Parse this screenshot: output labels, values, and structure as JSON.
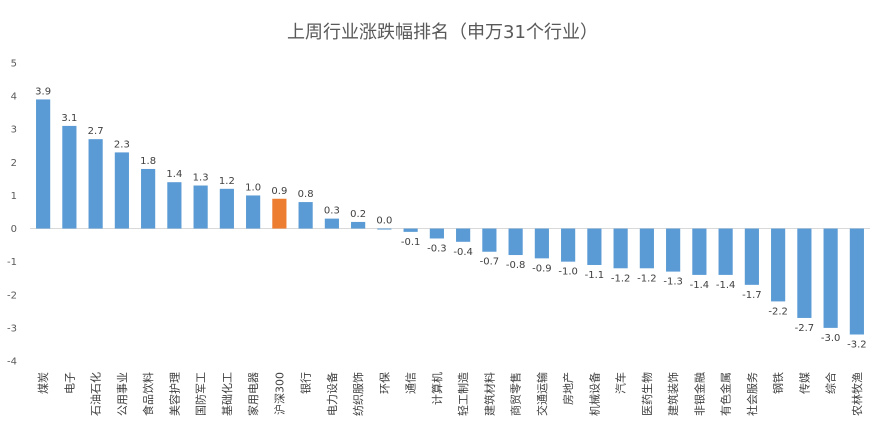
{
  "chart_data": {
    "type": "bar",
    "title": "上周行业涨跌幅排名（申万31个行业）",
    "categories": [
      "煤炭",
      "电子",
      "石油石化",
      "公用事业",
      "食品饮料",
      "美容护理",
      "国防军工",
      "基础化工",
      "家用电器",
      "沪深300",
      "银行",
      "电力设备",
      "纺织服饰",
      "环保",
      "通信",
      "计算机",
      "轻工制造",
      "建筑材料",
      "商贸零售",
      "交通运输",
      "房地产",
      "机械设备",
      "汽车",
      "医药生物",
      "建筑装饰",
      "非银金融",
      "有色金属",
      "社会服务",
      "钢铁",
      "传媒",
      "综合",
      "农林牧渔"
    ],
    "values": [
      3.9,
      3.1,
      2.7,
      2.3,
      1.8,
      1.4,
      1.3,
      1.2,
      1.0,
      0.9,
      0.8,
      0.3,
      0.2,
      0.0,
      -0.1,
      -0.3,
      -0.4,
      -0.7,
      -0.8,
      -0.9,
      -1.0,
      -1.1,
      -1.2,
      -1.2,
      -1.3,
      -1.4,
      -1.4,
      -1.7,
      -2.2,
      -2.7,
      -3.0,
      -3.2
    ],
    "value_labels": [
      "3.9",
      "3.1",
      "2.7",
      "2.3",
      "1.8",
      "1.4",
      "1.3",
      "1.2",
      "1.0",
      "0.9",
      "0.8",
      "0.3",
      "0.2",
      "0.0",
      "-0.1",
      "-0.3",
      "-0.4",
      "-0.7",
      "-0.8",
      "-0.9",
      "-1.0",
      "-1.1",
      "-1.2",
      "-1.2",
      "-1.3",
      "-1.4",
      "-1.4",
      "-1.7",
      "-2.2",
      "-2.7",
      "-3.0",
      "-3.2"
    ],
    "highlight_category": "沪深300",
    "ylim": [
      -4,
      5
    ],
    "yticks": [
      5,
      4,
      3,
      2,
      1,
      0,
      -1,
      -2,
      -3,
      -4
    ],
    "grid": false,
    "colors": {
      "bar": "#5B9BD5",
      "highlight": "#ED7D31",
      "axis": "#D9D9D9"
    }
  }
}
